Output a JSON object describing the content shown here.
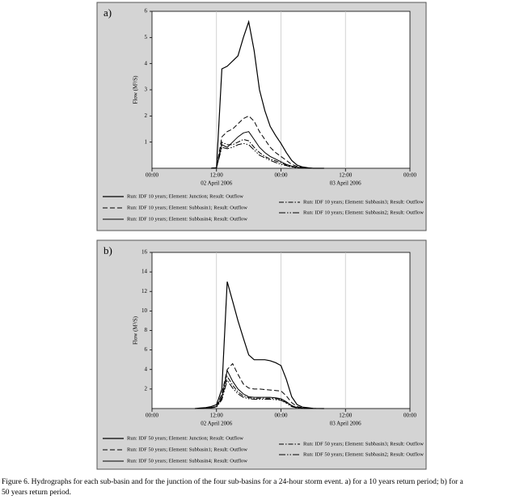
{
  "chart_data": [
    {
      "type": "line",
      "panel_label": "a)",
      "y_label": "Flow (M³/S)",
      "xlim": [
        0,
        48
      ],
      "ylim": [
        0,
        6
      ],
      "xticks": [
        {
          "value": 0,
          "label": "00:00"
        },
        {
          "value": 12,
          "label": "12:00"
        },
        {
          "value": 24,
          "label": "00:00"
        },
        {
          "value": 36,
          "label": "12:00"
        },
        {
          "value": 48,
          "label": "00:00"
        }
      ],
      "x_date_labels": [
        {
          "value": 12,
          "label": "02 April 2006"
        },
        {
          "value": 36,
          "label": "03 April 2006"
        }
      ],
      "yticks": [
        1,
        2,
        3,
        4,
        5,
        6
      ],
      "grid": "x",
      "x": [
        11,
        12,
        13,
        14,
        15,
        16,
        17,
        18,
        19,
        20,
        21,
        22,
        23,
        24,
        25,
        26,
        27,
        28,
        29,
        30,
        32
      ],
      "series": [
        {
          "name": "Run:  IDF 10 years; Element:  Junction;  Result:  Outflow",
          "color": "#000000",
          "dash": "solid",
          "width": 1.2,
          "values": [
            0,
            0.02,
            3.8,
            3.9,
            4.1,
            4.3,
            5.0,
            5.6,
            4.5,
            3.0,
            2.2,
            1.6,
            1.25,
            0.95,
            0.6,
            0.3,
            0.12,
            0.05,
            0.02,
            0,
            0
          ]
        },
        {
          "name": "Run:  IDF 10 years; Element:  Subbasin1;  Result:  Outflow",
          "color": "#000000",
          "dash": "dashed",
          "width": 1,
          "values": [
            0,
            0.02,
            1.2,
            1.4,
            1.5,
            1.7,
            1.9,
            2.0,
            1.8,
            1.4,
            1.1,
            0.8,
            0.6,
            0.45,
            0.3,
            0.15,
            0.07,
            0.03,
            0.01,
            0,
            0
          ]
        },
        {
          "name": "Run:  IDF 10 years; Element:  Subbasin4;  Result:  Outflow",
          "color": "#000000",
          "dash": "solid",
          "width": 1,
          "values": [
            0,
            0.02,
            0.9,
            0.8,
            1.0,
            1.2,
            1.35,
            1.4,
            1.1,
            0.8,
            0.6,
            0.45,
            0.35,
            0.25,
            0.15,
            0.08,
            0.04,
            0.02,
            0,
            0,
            0
          ]
        },
        {
          "name": "Run:  IDF 10 years; Element:  Subbasin3;  Result:  Outflow",
          "color": "#000000",
          "dash": "dash-dot",
          "width": 1,
          "values": [
            0,
            0.02,
            1.0,
            0.9,
            0.9,
            1.0,
            1.1,
            1.05,
            0.8,
            0.6,
            0.45,
            0.35,
            0.28,
            0.2,
            0.12,
            0.06,
            0.03,
            0.01,
            0,
            0,
            0
          ]
        },
        {
          "name": "Run:  IDF 10 years; Element:  Subbasin2;  Result:  Outflow",
          "color": "#000000",
          "dash": "dash-dot-dot",
          "width": 1,
          "values": [
            0,
            0.02,
            0.8,
            0.75,
            0.8,
            0.9,
            0.95,
            0.9,
            0.7,
            0.5,
            0.4,
            0.3,
            0.22,
            0.15,
            0.1,
            0.05,
            0.02,
            0.01,
            0,
            0,
            0
          ]
        }
      ]
    },
    {
      "type": "line",
      "panel_label": "b)",
      "y_label": "Flow (M³/S)",
      "xlim": [
        0,
        48
      ],
      "ylim": [
        0,
        16
      ],
      "xticks": [
        {
          "value": 0,
          "label": "00:00"
        },
        {
          "value": 12,
          "label": "12:00"
        },
        {
          "value": 24,
          "label": "00:00"
        },
        {
          "value": 36,
          "label": "12:00"
        },
        {
          "value": 48,
          "label": "00:00"
        }
      ],
      "x_date_labels": [
        {
          "value": 12,
          "label": "02 April 2006"
        },
        {
          "value": 36,
          "label": "03 April 2006"
        }
      ],
      "yticks": [
        2,
        4,
        6,
        8,
        10,
        12,
        14,
        16
      ],
      "grid": "x",
      "x": [
        8,
        9,
        10,
        11,
        12,
        13,
        14,
        15,
        16,
        17,
        18,
        19,
        20,
        21,
        22,
        23,
        24,
        25,
        26,
        27,
        28,
        30,
        32
      ],
      "series": [
        {
          "name": "Run:  IDF 50 years; Element:  Junction;  Result:  Outflow",
          "color": "#000000",
          "dash": "solid",
          "width": 1.2,
          "values": [
            0,
            0.05,
            0.1,
            0.2,
            0.4,
            2,
            13,
            11,
            9,
            7.2,
            5.5,
            5,
            5,
            5,
            4.9,
            4.7,
            4.4,
            3,
            1.2,
            0.4,
            0.15,
            0.02,
            0
          ]
        },
        {
          "name": "Run:  IDF 50 years; Element:  Subbasin1;  Result:  Outflow",
          "color": "#000000",
          "dash": "dashed",
          "width": 1,
          "values": [
            0,
            0,
            0.05,
            0.1,
            0.2,
            1.5,
            4,
            4.6,
            3.5,
            2.5,
            2.1,
            2,
            2,
            1.95,
            1.9,
            1.85,
            1.8,
            1.3,
            0.6,
            0.2,
            0.08,
            0.01,
            0
          ]
        },
        {
          "name": "Run:  IDF 50 years; Element:  Subbasin4;  Result:  Outflow",
          "color": "#000000",
          "dash": "solid",
          "width": 1,
          "values": [
            0,
            0,
            0.05,
            0.1,
            0.2,
            1.2,
            3.9,
            2.8,
            2,
            1.5,
            1.2,
            1.15,
            1.15,
            1.15,
            1.15,
            1.1,
            1.0,
            0.7,
            0.3,
            0.1,
            0.04,
            0,
            0
          ]
        },
        {
          "name": "Run:  IDF 50 years; Element:  Subbasin3;  Result:  Outflow",
          "color": "#000000",
          "dash": "dash-dot",
          "width": 1,
          "values": [
            0,
            0,
            0.05,
            0.1,
            0.2,
            1,
            3.3,
            2.4,
            1.7,
            1.3,
            1.1,
            1.05,
            1.05,
            1.05,
            1.05,
            1.0,
            0.95,
            0.6,
            0.25,
            0.08,
            0.03,
            0,
            0
          ]
        },
        {
          "name": "Run:  IDF 50 years; Element:  Subbasin2;  Result:  Outflow",
          "color": "#000000",
          "dash": "dash-dot-dot",
          "width": 1,
          "values": [
            0,
            0,
            0.04,
            0.08,
            0.15,
            0.9,
            2.9,
            2.1,
            1.5,
            1.15,
            1.0,
            0.95,
            0.95,
            0.95,
            0.95,
            0.9,
            0.85,
            0.55,
            0.2,
            0.07,
            0.02,
            0,
            0
          ]
        }
      ]
    }
  ],
  "caption": [
    "Figure 6. Hydrographs for each sub-basin and for the junction of the four sub-basins for a 24-hour storm event. a) for a 10 years return period; b) for a",
    "50 years return period."
  ]
}
